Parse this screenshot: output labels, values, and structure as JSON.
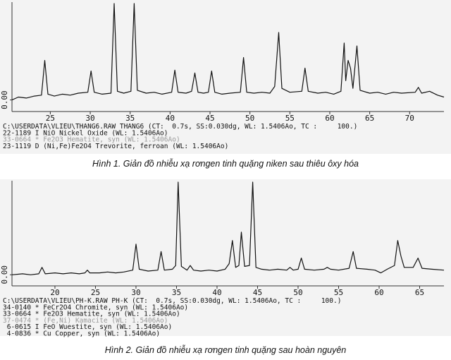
{
  "chart_data": [
    {
      "type": "line",
      "caption": "Hình 1. Giản đồ nhiễu xạ rơngen tinh quặng niken sau thiêu ôxy hóa",
      "header_lines": [
        {
          "text": "C:\\USERDATA\\VLIEU\\THANG6.RAW THANG6 (CT:  0.7s, SS:0.030dg, WL: 1.5406Ao, TC :     100.)",
          "color": "#111111"
        },
        {
          "text": "22-1189 I NiO Nickel Oxide (WL: 1.5406Ao)",
          "color": "#111111"
        },
        {
          "text": "33-0664 * Fe2O3 Hematite, syn (WL: 1.5406Ao)",
          "color": "#999999"
        },
        {
          "text": "23-1119 D (Ni,Fe)Fe2O4 Trevorite, ferroan (WL: 1.5406Ao)",
          "color": "#111111"
        }
      ],
      "xlim": [
        20.2,
        74.3
      ],
      "xticks": [
        25,
        30,
        35,
        40,
        45,
        50,
        55,
        60,
        65,
        70
      ],
      "ylim": [
        -12,
        100
      ],
      "yticks": [
        {
          "value": 0,
          "label": "0.00"
        }
      ],
      "color": "#111111",
      "x": [
        20.2,
        21,
        22,
        23,
        23.9,
        24.3,
        24.7,
        25.5,
        26.5,
        27.5,
        28.5,
        29.7,
        30.1,
        30.5,
        31.5,
        32.6,
        33.0,
        33.4,
        34.2,
        35.1,
        35.5,
        35.9,
        37,
        38,
        39,
        40.2,
        40.6,
        41,
        42,
        42.7,
        43.1,
        43.5,
        44.2,
        44.8,
        45.2,
        45.6,
        46.5,
        47.5,
        48.8,
        49.2,
        49.6,
        50.5,
        51.5,
        52.5,
        53.1,
        53.6,
        54.0,
        55,
        56.5,
        56.9,
        57.3,
        58.5,
        59.5,
        60.5,
        61.4,
        61.8,
        62.0,
        62.3,
        62.6,
        62.9,
        63.4,
        63.8,
        65,
        66,
        67,
        68,
        69,
        70.7,
        71.1,
        71.5,
        72.5,
        73.5,
        74.3
      ],
      "values": [
        0,
        3,
        2,
        4,
        5,
        41,
        6,
        4,
        6,
        5,
        7,
        8,
        30,
        8,
        6,
        7,
        100,
        9,
        7,
        9,
        100,
        10,
        7,
        8,
        6,
        8,
        31,
        8,
        7,
        9,
        28,
        8,
        7,
        8,
        30,
        8,
        6,
        7,
        8,
        44,
        8,
        7,
        8,
        7,
        14,
        70,
        12,
        8,
        9,
        33,
        9,
        7,
        8,
        6,
        9,
        59,
        20,
        41,
        33,
        12,
        56,
        10,
        7,
        8,
        6,
        8,
        7,
        8,
        13,
        7,
        9,
        5,
        3
      ]
    },
    {
      "type": "line",
      "caption": "Hình 2. Giản đồ nhiễu xạ rơngen tinh quặng sau hoàn nguyên",
      "header_lines": [
        {
          "text": "C:\\USERDATA\\VLIEU\\PH-K.RAW PH-K (CT:  0.7s, SS:0.030dg, WL: 1.5406Ao, TC :     100.)",
          "color": "#111111"
        },
        {
          "text": "34-0140 * FeCr2O4 Chromite, syn (WL: 1.5406Ao)",
          "color": "#111111"
        },
        {
          "text": "33-0664 * Fe2O3 Hematite, syn (WL: 1.5406Ao)",
          "color": "#111111"
        },
        {
          "text": "37-0474 * (Fe,Ni) Kamacite (WL: 1.5406Ao)",
          "color": "#999999"
        },
        {
          "text": " 6-0615 I FeO Wuestite, syn (WL: 1.5406Ao)",
          "color": "#111111"
        },
        {
          "text": " 4-0836 * Cu Copper, syn (WL: 1.5406Ao)",
          "color": "#111111"
        }
      ],
      "xlim": [
        14.7,
        68.0
      ],
      "xticks": [
        20,
        25,
        30,
        35,
        40,
        45,
        50,
        55,
        60,
        65
      ],
      "ylim": [
        -12,
        100
      ],
      "yticks": [
        {
          "value": 0,
          "label": "0.00"
        }
      ],
      "color": "#111111",
      "x": [
        14.7,
        16,
        17,
        18,
        18.4,
        18.8,
        20,
        21,
        22,
        23,
        23.7,
        24.0,
        24.3,
        25.5,
        26.5,
        27.5,
        28.5,
        29.6,
        30.0,
        30.4,
        31.5,
        32.7,
        33.1,
        33.5,
        34.5,
        34.9,
        35.2,
        35.6,
        36.3,
        36.7,
        37.1,
        38,
        39,
        40,
        41.0,
        41.5,
        41.9,
        42.3,
        42.7,
        43.0,
        43.4,
        44.0,
        44.4,
        44.8,
        45.5,
        46.5,
        47.5,
        48.6,
        49.0,
        49.4,
        50.0,
        50.4,
        50.8,
        52,
        53.2,
        53.6,
        54,
        55,
        56.3,
        56.8,
        57.2,
        58.5,
        59.5,
        60.2,
        61,
        61.9,
        62.3,
        62.7,
        63.1,
        64.2,
        64.8,
        65.3,
        66.5,
        68.0
      ],
      "values": [
        0,
        1,
        0,
        1,
        8,
        1,
        2,
        1,
        2,
        1,
        2,
        5,
        2,
        2,
        3,
        2,
        3,
        5,
        33,
        6,
        4,
        5,
        25,
        5,
        6,
        10,
        100,
        9,
        5,
        10,
        5,
        4,
        5,
        4,
        6,
        12,
        37,
        8,
        10,
        46,
        9,
        10,
        100,
        8,
        6,
        5,
        6,
        5,
        8,
        5,
        6,
        18,
        6,
        5,
        6,
        8,
        6,
        5,
        7,
        25,
        7,
        6,
        5,
        2,
        6,
        10,
        37,
        20,
        8,
        8,
        18,
        7,
        6,
        5
      ]
    }
  ]
}
